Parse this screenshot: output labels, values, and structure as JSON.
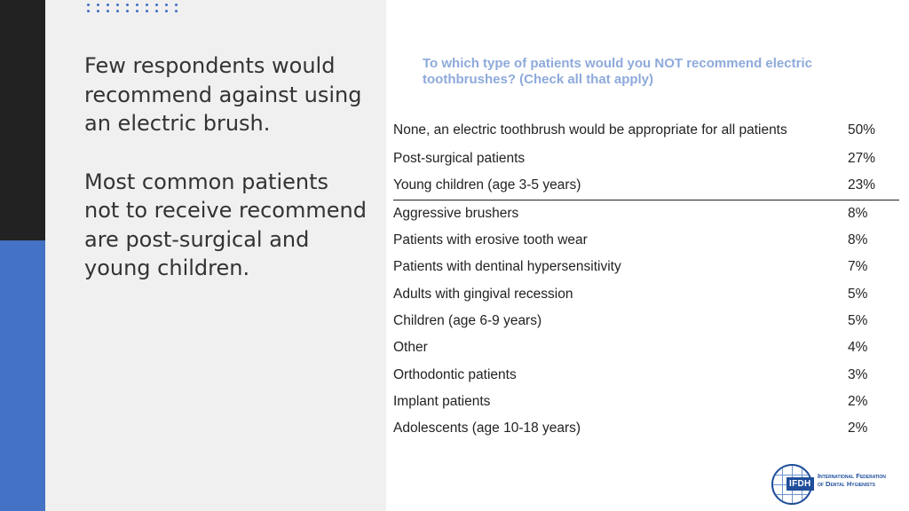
{
  "slide": {
    "headline_1": "Few respondents would recommend against using an electric brush.",
    "headline_2": "Most common patients not to receive recommend are post-surgical and young children.",
    "question": "To which type of patients would you NOT recommend electric toothbrushes? (Check all that apply)",
    "rows": [
      {
        "label": "None, an electric toothbrush would be appropriate for all patients",
        "value": "50%"
      },
      {
        "label": "Post-surgical patients",
        "value": "27%"
      },
      {
        "label": "Young children (age 3-5 years)",
        "value": "23%"
      },
      {
        "label": "Aggressive brushers",
        "value": "8%"
      },
      {
        "label": "Patients with erosive tooth wear",
        "value": "8%"
      },
      {
        "label": "Patients with dentinal hypersensitivity",
        "value": "7%"
      },
      {
        "label": "Adults with gingival recession",
        "value": "5%"
      },
      {
        "label": "Children (age 6-9 years)",
        "value": "5%"
      },
      {
        "label": "Other",
        "value": "4%"
      },
      {
        "label": "Orthodontic patients",
        "value": "3%"
      },
      {
        "label": "Implant patients",
        "value": "2%"
      },
      {
        "label": "Adolescents (age 10-18 years)",
        "value": "2%"
      }
    ],
    "logo": {
      "abbr": "IFDH",
      "line_1": "International Federation",
      "line_2": "of Dental Hygienists"
    }
  },
  "colors": {
    "accent_blue": "#4472c4",
    "dark_bar": "#222222",
    "question_text": "#8eaadb",
    "logo_blue": "#1f4e9a"
  }
}
